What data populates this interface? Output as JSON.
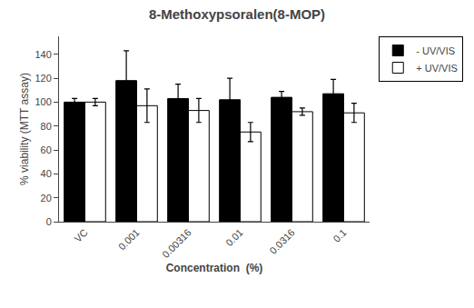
{
  "chart_data": {
    "type": "bar",
    "title": "8-Methoxypsoralen(8-MOP)",
    "xlabel": "Concentration  (%)",
    "ylabel": "% viability (MTT assay)",
    "categories": [
      "VC",
      "0.001",
      "0.00316",
      "0.01",
      "0.0316",
      "0.1"
    ],
    "series": [
      {
        "name": "- UV/VIS",
        "color": "#000000",
        "values": [
          100,
          118,
          103,
          102,
          104,
          107
        ],
        "errors": [
          3,
          25,
          12,
          18,
          5,
          12
        ]
      },
      {
        "name": "+ UV/VIS",
        "color": "#ffffff",
        "values": [
          100,
          97,
          93,
          75,
          92,
          91
        ],
        "errors": [
          3,
          14,
          10,
          8,
          3,
          8
        ]
      }
    ],
    "ylim": [
      0,
      155
    ],
    "yticks": [
      0,
      20,
      40,
      60,
      80,
      100,
      120,
      140
    ],
    "grid": false,
    "legend": "right"
  }
}
